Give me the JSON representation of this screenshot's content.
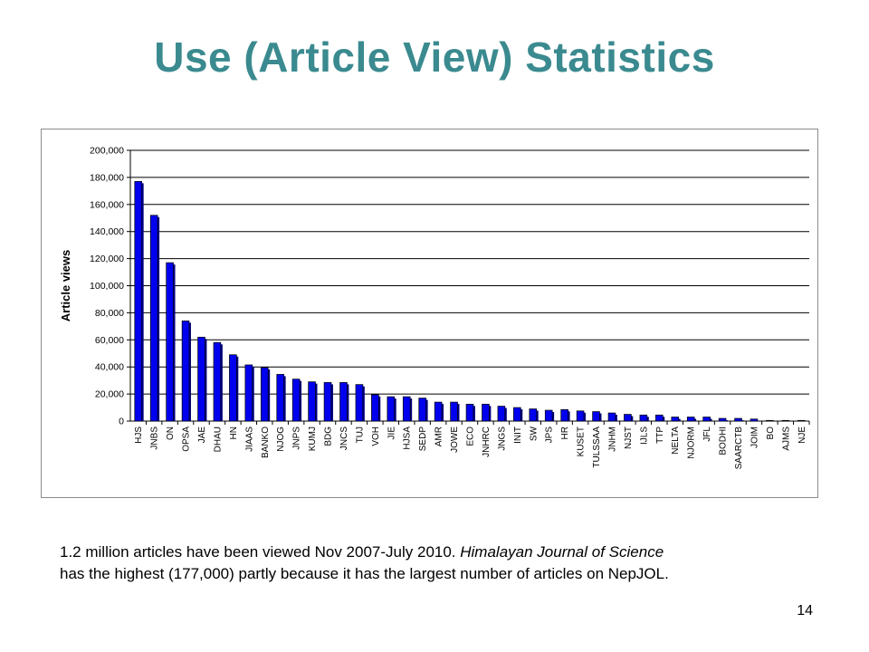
{
  "slide": {
    "title": "Use (Article View) Statistics",
    "title_color": "#3a8a8f",
    "caption_line1_plain": "1.2 million articles have been viewed Nov 2007-July 2010. ",
    "caption_line1_italic": "Himalayan Journal of Science",
    "caption_line2": "has the highest (177,000) partly because it has the largest number of articles on NepJOL.",
    "page_number": "14"
  },
  "chart_data": {
    "type": "bar",
    "ylabel": "Article views",
    "xlabel": "",
    "ylim": [
      0,
      200000
    ],
    "yticks": [
      0,
      20000,
      40000,
      60000,
      80000,
      100000,
      120000,
      140000,
      160000,
      180000,
      200000
    ],
    "ytick_labels": [
      "0",
      "20,000",
      "40,000",
      "60,000",
      "80,000",
      "100,000",
      "120,000",
      "140,000",
      "160,000",
      "180,000",
      "200,000"
    ],
    "grid": true,
    "bar_color": "#0000ee",
    "categories": [
      "HJS",
      "JNBS",
      "ON",
      "OPSA",
      "JAE",
      "DHAU",
      "HN",
      "JIAAS",
      "BANKO",
      "NJOG",
      "JNPS",
      "KUMJ",
      "BDG",
      "JNCS",
      "TUJ",
      "VOH",
      "JIE",
      "HJSA",
      "SEDP",
      "AMR",
      "JOWE",
      "ECO",
      "JNHRC",
      "JNGS",
      "INIT",
      "SW",
      "JPS",
      "HR",
      "KUSET",
      "TULSSAA",
      "JNHM",
      "NJST",
      "IJLS",
      "TTP",
      "NELTA",
      "NJORM",
      "JFL",
      "BODHI",
      "SAARCTB",
      "JOIM",
      "BO",
      "AJMS",
      "NJE"
    ],
    "values": [
      177000,
      152000,
      117000,
      74000,
      62000,
      58000,
      49000,
      41500,
      39500,
      34500,
      31000,
      29000,
      28500,
      28500,
      27000,
      19500,
      18000,
      18000,
      17000,
      14000,
      14000,
      12500,
      12500,
      11000,
      10000,
      9000,
      8000,
      8500,
      7500,
      7000,
      6000,
      5000,
      4500,
      4500,
      3000,
      3000,
      3000,
      2000,
      2000,
      1500,
      500,
      500,
      500
    ]
  }
}
